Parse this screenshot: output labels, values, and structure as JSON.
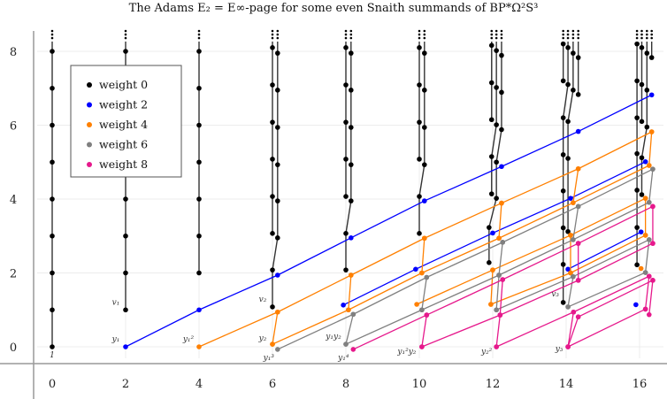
{
  "chart_data": {
    "type": "scatter",
    "title": "The Adams E₂ = E∞-page for some even Snaith summands of BP*Ω²S³",
    "xlim": [
      -0.5,
      16.6
    ],
    "ylim": [
      -0.5,
      8.6
    ],
    "x_ticks": [
      "0",
      "2",
      "4",
      "6",
      "8",
      "10",
      "12",
      "14",
      "16"
    ],
    "y_ticks": [
      "0",
      "2",
      "4",
      "6",
      "8"
    ],
    "grid": true,
    "legend_position": "top-left",
    "legend": [
      {
        "label": "weight 0",
        "color": "#000000"
      },
      {
        "label": "weight 2",
        "color": "#0000ff"
      },
      {
        "label": "weight 4",
        "color": "#ff8000"
      },
      {
        "label": "weight 6",
        "color": "#808080"
      },
      {
        "label": "weight 8",
        "color": "#e6198c"
      }
    ],
    "towers_weight0": [
      [
        [
          0,
          0
        ],
        [
          0,
          1
        ],
        [
          0,
          2
        ],
        [
          0,
          3
        ],
        [
          0,
          4
        ],
        [
          0,
          5
        ],
        [
          0,
          6
        ],
        [
          0,
          7
        ],
        [
          0,
          8
        ]
      ],
      [
        [
          2,
          1
        ],
        [
          2,
          2
        ],
        [
          2,
          3
        ],
        [
          2,
          4
        ],
        [
          2,
          5
        ],
        [
          2,
          6
        ],
        [
          2,
          7
        ],
        [
          2,
          8
        ]
      ],
      [
        [
          4,
          2
        ],
        [
          4,
          3
        ],
        [
          4,
          4
        ],
        [
          4,
          5
        ],
        [
          4,
          6
        ],
        [
          4,
          7
        ],
        [
          4,
          8
        ]
      ],
      [
        [
          6,
          1.08
        ],
        [
          6,
          2.08
        ],
        [
          6.14,
          2.95
        ],
        [
          6.14,
          3.95
        ],
        [
          6.14,
          4.93
        ],
        [
          6.14,
          5.94
        ],
        [
          6.14,
          6.95
        ],
        [
          6.14,
          7.95
        ]
      ],
      [
        [
          6,
          3.07
        ],
        [
          6,
          4.07
        ],
        [
          6,
          5.08
        ],
        [
          6,
          6.08
        ],
        [
          6,
          7.09
        ],
        [
          6,
          8.1
        ]
      ],
      [
        [
          8,
          2.08
        ],
        [
          8,
          3.07
        ],
        [
          8.14,
          3.95
        ],
        [
          8.14,
          4.93
        ],
        [
          8.14,
          5.94
        ],
        [
          8.14,
          6.95
        ],
        [
          8.14,
          7.95
        ]
      ],
      [
        [
          8,
          4.07
        ],
        [
          8,
          5.08
        ],
        [
          8,
          6.08
        ],
        [
          8,
          7.09
        ],
        [
          8,
          8.1
        ]
      ],
      [
        [
          10,
          3.07
        ],
        [
          10,
          4.07
        ],
        [
          10.14,
          4.93
        ],
        [
          10.14,
          5.94
        ],
        [
          10.14,
          6.95
        ],
        [
          10.14,
          7.95
        ]
      ],
      [
        [
          10,
          5.08
        ],
        [
          10,
          6.08
        ],
        [
          10,
          7.09
        ],
        [
          10,
          8.1
        ]
      ],
      [
        [
          11.9,
          2.28
        ],
        [
          11.9,
          3.23
        ],
        [
          12.1,
          4.02
        ],
        [
          12.1,
          5.0
        ],
        [
          12.24,
          5.88
        ],
        [
          12.24,
          6.89
        ],
        [
          12.24,
          7.89
        ]
      ],
      [
        [
          11.97,
          4.14
        ],
        [
          11.97,
          5.15
        ],
        [
          12.1,
          6.01
        ],
        [
          12.1,
          7.02
        ],
        [
          12.1,
          8.02
        ]
      ],
      [
        [
          11.97,
          6.15
        ],
        [
          11.97,
          7.15
        ],
        [
          11.97,
          8.16
        ]
      ],
      [
        [
          13.92,
          1.2
        ],
        [
          13.92,
          2.23
        ],
        [
          13.92,
          3.22
        ],
        [
          13.92,
          4.22
        ],
        [
          13.92,
          5.2
        ],
        [
          13.92,
          6.2
        ],
        [
          14.05,
          7.1
        ],
        [
          14.05,
          8.1
        ]
      ],
      [
        [
          14.05,
          3.12
        ],
        [
          14.05,
          5.1
        ],
        [
          14.05,
          6.1
        ],
        [
          14.19,
          6.95
        ],
        [
          14.19,
          7.95
        ]
      ],
      [
        [
          13.92,
          7.2
        ],
        [
          13.92,
          8.2
        ]
      ],
      [
        [
          14.33,
          6.83
        ],
        [
          14.33,
          7.83
        ]
      ],
      [
        [
          15.93,
          2.22
        ],
        [
          15.93,
          3.23
        ],
        [
          15.93,
          4.24
        ],
        [
          15.93,
          5.23
        ],
        [
          15.93,
          6.2
        ],
        [
          15.93,
          7.2
        ],
        [
          15.93,
          8.2
        ]
      ],
      [
        [
          16.06,
          4.12
        ],
        [
          16.06,
          5.12
        ],
        [
          16.2,
          5.95
        ],
        [
          16.2,
          6.95
        ],
        [
          16.2,
          7.95
        ]
      ],
      [
        [
          16.06,
          6.1
        ],
        [
          16.06,
          7.1
        ],
        [
          16.06,
          8.1
        ]
      ],
      [
        [
          16.33,
          7.83
        ]
      ]
    ],
    "series": [
      {
        "weight": 2,
        "color": "#0000ff",
        "paths": [
          [
            [
              2,
              0
            ],
            [
              4,
              1
            ],
            [
              6.14,
              1.94
            ],
            [
              8.14,
              2.95
            ],
            [
              10.14,
              3.95
            ],
            [
              12.24,
              4.88
            ],
            [
              14.33,
              5.83
            ],
            [
              16.33,
              6.82
            ]
          ],
          [
            [
              7.93,
              1.13
            ],
            [
              9.9,
              2.1
            ],
            [
              12.0,
              3.08
            ],
            [
              14.12,
              4.02
            ],
            [
              16.16,
              5.01
            ]
          ],
          [
            [
              14.05,
              2.1
            ],
            [
              16.04,
              3.11
            ]
          ],
          [
            [
              15.9,
              1.14
            ]
          ]
        ]
      },
      {
        "weight": 4,
        "color": "#ff8000",
        "paths": [
          [
            [
              4,
              0
            ],
            [
              6.14,
              0.94
            ],
            [
              8.14,
              1.94
            ],
            [
              10.14,
              2.94
            ],
            [
              12.24,
              3.89
            ],
            [
              14.33,
              4.82
            ],
            [
              16.33,
              5.82
            ]
          ],
          [
            [
              6,
              0.07
            ],
            [
              8.07,
              1.0
            ],
            [
              10.07,
              2.0
            ],
            [
              12.17,
              2.94
            ],
            [
              14.19,
              3.9
            ],
            [
              16.26,
              4.91
            ]
          ],
          [
            [
              9.93,
              1.15
            ],
            [
              12.0,
              2.08
            ],
            [
              14.12,
              3.02
            ],
            [
              16.16,
              4.02
            ]
          ],
          [
            [
              11.95,
              1.15
            ],
            [
              14.12,
              2.0
            ],
            [
              16.16,
              3.02
            ]
          ],
          [
            [
              16.04,
              2.12
            ]
          ],
          [
            [
              6,
              0.07
            ],
            [
              6.14,
              0.94
            ]
          ],
          [
            [
              8.07,
              1.0
            ],
            [
              8.14,
              1.94
            ]
          ],
          [
            [
              10.07,
              2.0
            ],
            [
              10.14,
              2.94
            ]
          ],
          [
            [
              11.95,
              1.15
            ],
            [
              12.0,
              2.08
            ]
          ],
          [
            [
              12.17,
              2.94
            ],
            [
              12.24,
              3.89
            ]
          ],
          [
            [
              14.12,
              2.0
            ],
            [
              14.12,
              3.02
            ]
          ],
          [
            [
              14.19,
              3.9
            ],
            [
              14.33,
              4.82
            ]
          ],
          [
            [
              16.16,
              3.02
            ],
            [
              16.16,
              4.02
            ]
          ],
          [
            [
              16.26,
              4.91
            ],
            [
              16.33,
              5.82
            ]
          ]
        ]
      },
      {
        "weight": 6,
        "color": "#808080",
        "paths": [
          [
            [
              6.14,
              -0.07
            ],
            [
              8.2,
              0.88
            ],
            [
              10.2,
              1.88
            ],
            [
              12.27,
              2.83
            ],
            [
              14.33,
              3.8
            ],
            [
              16.36,
              4.81
            ]
          ],
          [
            [
              8.0,
              0.07
            ],
            [
              10.07,
              1.0
            ],
            [
              12.17,
              1.94
            ],
            [
              14.19,
              2.9
            ],
            [
              16.26,
              3.91
            ]
          ],
          [
            [
              12.1,
              1.0
            ],
            [
              14.19,
              1.9
            ],
            [
              16.26,
              2.9
            ]
          ],
          [
            [
              14.05,
              1.08
            ],
            [
              16.16,
              2.01
            ]
          ],
          [
            [
              8.0,
              0.07
            ],
            [
              8.2,
              0.88
            ]
          ],
          [
            [
              10.07,
              1.0
            ],
            [
              10.2,
              1.88
            ]
          ],
          [
            [
              12.1,
              1.0
            ],
            [
              12.17,
              1.94
            ]
          ],
          [
            [
              12.17,
              1.94
            ],
            [
              12.27,
              2.83
            ]
          ],
          [
            [
              14.05,
              1.08
            ],
            [
              14.19,
              1.9
            ]
          ],
          [
            [
              14.19,
              2.9
            ],
            [
              14.33,
              3.8
            ]
          ],
          [
            [
              16.16,
              2.01
            ],
            [
              16.26,
              2.9
            ]
          ],
          [
            [
              16.26,
              3.91
            ],
            [
              16.36,
              4.81
            ]
          ]
        ]
      },
      {
        "weight": 8,
        "color": "#e6198c",
        "paths": [
          [
            [
              8.2,
              -0.07
            ],
            [
              10.2,
              0.86
            ],
            [
              12.27,
              1.82
            ],
            [
              14.33,
              2.8
            ],
            [
              16.36,
              3.8
            ]
          ],
          [
            [
              10.07,
              0
            ],
            [
              12.2,
              0.86
            ],
            [
              14.33,
              1.8
            ],
            [
              16.36,
              2.8
            ]
          ],
          [
            [
              12.1,
              0
            ],
            [
              14.2,
              0.94
            ],
            [
              16.26,
              1.91
            ]
          ],
          [
            [
              14.05,
              0
            ],
            [
              16.16,
              1.02
            ]
          ],
          [
            [
              14.33,
              0.81
            ],
            [
              16.36,
              1.8
            ]
          ],
          [
            [
              10.07,
              0
            ],
            [
              10.2,
              0.86
            ]
          ],
          [
            [
              12.1,
              0
            ],
            [
              12.2,
              0.86
            ]
          ],
          [
            [
              12.2,
              0.86
            ],
            [
              12.27,
              1.82
            ]
          ],
          [
            [
              14.05,
              0
            ],
            [
              14.2,
              0.94
            ]
          ],
          [
            [
              14.05,
              0
            ],
            [
              14.33,
              0.81
            ]
          ],
          [
            [
              14.33,
              1.8
            ],
            [
              14.33,
              2.8
            ]
          ],
          [
            [
              16.16,
              1.02
            ],
            [
              16.26,
              1.91
            ]
          ],
          [
            [
              16.26,
              0.87
            ],
            [
              16.36,
              1.8
            ]
          ],
          [
            [
              16.36,
              2.8
            ],
            [
              16.36,
              3.8
            ]
          ]
        ]
      }
    ],
    "annotations": [
      {
        "text": "1",
        "at": [
          0,
          0
        ]
      },
      {
        "text": "v₁",
        "at": [
          2,
          1
        ]
      },
      {
        "text": "y₁",
        "at": [
          2,
          0
        ]
      },
      {
        "text": "y₁²",
        "at": [
          4,
          0
        ]
      },
      {
        "text": "v₂",
        "at": [
          6,
          1.08
        ]
      },
      {
        "text": "y₂",
        "at": [
          6,
          0.07
        ]
      },
      {
        "text": "y₁³",
        "at": [
          6.14,
          -0.07
        ]
      },
      {
        "text": "y₁y₂",
        "at": [
          8.0,
          0.07
        ]
      },
      {
        "text": "y₁⁴",
        "at": [
          8.2,
          -0.07
        ]
      },
      {
        "text": "y₁²y₂",
        "at": [
          10.07,
          0
        ]
      },
      {
        "text": "y₂²",
        "at": [
          12.1,
          0
        ]
      },
      {
        "text": "v₃",
        "at": [
          13.92,
          1.2
        ]
      },
      {
        "text": "y₃",
        "at": [
          14.05,
          0
        ]
      }
    ]
  }
}
